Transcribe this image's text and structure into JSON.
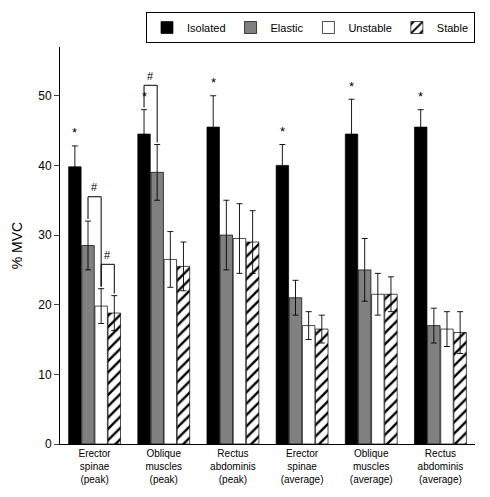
{
  "chart_data": {
    "type": "bar",
    "categories": [
      "Erector\nspinae\n(peak)",
      "Oblique\nmuscles\n(peak)",
      "Rectus\nabdominis\n(peak)",
      "Erector\nspinae\n(average)",
      "Oblique\nmuscles\n(average)",
      "Rectus\nabdominis\n(average)"
    ],
    "series": [
      {
        "name": "Isolated",
        "color": "#000000",
        "values": [
          39.8,
          44.5,
          45.5,
          40.0,
          44.5,
          45.5
        ],
        "errors": [
          3.0,
          3.5,
          4.5,
          3.0,
          5.0,
          2.5
        ]
      },
      {
        "name": "Elastic",
        "color": "#808080",
        "values": [
          28.5,
          39.0,
          30.0,
          21.0,
          25.0,
          17.0
        ],
        "errors": [
          3.5,
          4.0,
          5.0,
          2.5,
          4.5,
          2.5
        ]
      },
      {
        "name": "Unstable",
        "color": "#ffffff",
        "values": [
          19.8,
          26.5,
          29.5,
          17.0,
          21.5,
          16.5
        ],
        "errors": [
          2.5,
          4.0,
          5.0,
          2.0,
          3.0,
          2.5
        ]
      },
      {
        "name": "Stable",
        "color": "#ffffff",
        "marker": "hatched",
        "values": [
          18.8,
          25.5,
          29.0,
          16.5,
          21.5,
          16.0
        ],
        "errors": [
          2.5,
          3.5,
          4.5,
          2.0,
          2.5,
          3.0
        ]
      }
    ],
    "ylabel": "% MVC",
    "ylim": [
      0,
      57
    ],
    "yticks": [
      0,
      10,
      20,
      30,
      40,
      50
    ],
    "grid": false,
    "legend": "upper right",
    "annotations": [
      {
        "text": "*",
        "series": "Isolated",
        "category": "Erector\nspinae\n(peak)"
      },
      {
        "text": "*",
        "series": "Isolated",
        "category": "Oblique\nmuscles\n(peak)"
      },
      {
        "text": "*",
        "series": "Isolated",
        "category": "Rectus\nabdominis\n(peak)"
      },
      {
        "text": "*",
        "series": "Isolated",
        "category": "Erector\nspinae\n(average)"
      },
      {
        "text": "*",
        "series": "Isolated",
        "category": "Oblique\nmuscles\n(average)"
      },
      {
        "text": "*",
        "series": "Isolated",
        "category": "Rectus\nabdominis\n(average)"
      },
      {
        "text": "#",
        "between": [
          "Elastic",
          "Unstable"
        ],
        "category": "Erector\nspinae\n(peak)"
      },
      {
        "text": "#",
        "between": [
          "Unstable",
          "Stable"
        ],
        "category": "Erector\nspinae\n(peak)"
      },
      {
        "text": "#",
        "between": [
          "Isolated",
          "Elastic"
        ],
        "category": "Oblique\nmuscles\n(peak)"
      }
    ]
  }
}
